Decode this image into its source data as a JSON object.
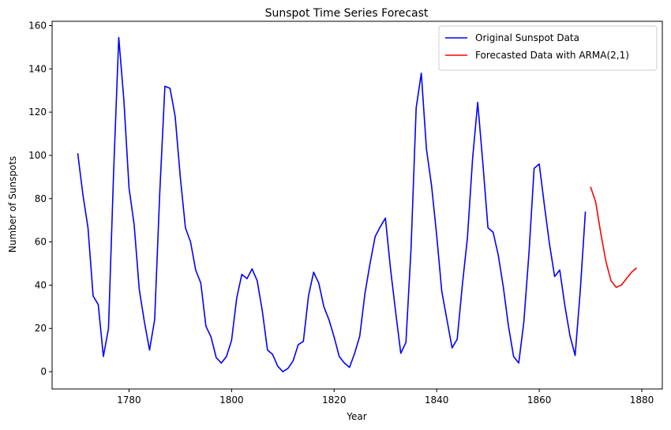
{
  "chart_data": {
    "type": "line",
    "title": "Sunspot Time Series Forecast",
    "xlabel": "Year",
    "ylabel": "Number of Sunspots",
    "xlim": [
      1765,
      1884
    ],
    "ylim": [
      -8,
      162
    ],
    "xticks": [
      1780,
      1800,
      1820,
      1840,
      1860,
      1880
    ],
    "yticks": [
      0,
      20,
      40,
      60,
      80,
      100,
      120,
      140,
      160
    ],
    "grid": false,
    "legend_position": "top-right",
    "series": [
      {
        "name": "Original Sunspot Data",
        "color": "#0000ff",
        "x": [
          1770,
          1771,
          1772,
          1773,
          1774,
          1775,
          1776,
          1777,
          1778,
          1779,
          1780,
          1781,
          1782,
          1783,
          1784,
          1785,
          1786,
          1787,
          1788,
          1789,
          1790,
          1791,
          1792,
          1793,
          1794,
          1795,
          1796,
          1797,
          1798,
          1799,
          1800,
          1801,
          1802,
          1803,
          1804,
          1805,
          1806,
          1807,
          1808,
          1809,
          1810,
          1811,
          1812,
          1813,
          1814,
          1815,
          1816,
          1817,
          1818,
          1819,
          1820,
          1821,
          1822,
          1823,
          1824,
          1825,
          1826,
          1827,
          1828,
          1829,
          1830,
          1831,
          1832,
          1833,
          1834,
          1835,
          1836,
          1837,
          1838,
          1839,
          1840,
          1841,
          1842,
          1843,
          1844,
          1845,
          1846,
          1847,
          1848,
          1849,
          1850,
          1851,
          1852,
          1853,
          1854,
          1855,
          1856,
          1857,
          1858,
          1859,
          1860,
          1861,
          1862,
          1863,
          1864,
          1865,
          1866,
          1867,
          1868,
          1869
        ],
        "values": [
          101,
          82,
          66.5,
          35,
          31,
          7,
          20,
          92.5,
          154.5,
          125.5,
          85,
          68,
          38,
          23,
          10,
          24,
          83,
          132,
          131,
          118,
          90,
          66.5,
          60,
          47,
          41,
          21,
          16,
          6.5,
          4,
          7,
          14.5,
          34,
          45,
          43,
          47.5,
          42,
          28,
          10,
          8,
          2.5,
          0,
          1.5,
          5,
          12.5,
          14,
          35,
          46,
          41,
          30,
          24,
          16,
          7,
          4,
          2,
          8.5,
          16.5,
          36,
          50,
          62.5,
          67,
          71,
          47.5,
          27.5,
          8.5,
          13.5,
          57,
          122,
          138,
          103,
          86,
          63,
          37,
          24,
          11,
          15,
          40,
          62,
          98.5,
          124.5,
          96.5,
          66.5,
          64.5,
          54,
          39,
          21,
          7,
          4,
          23,
          55,
          94,
          96,
          77,
          59,
          44,
          47,
          30.5,
          16.5,
          7.5,
          37.5,
          74
        ]
      },
      {
        "name": "Forecasted Data with ARMA(2,1)",
        "color": "#ff0000",
        "x": [
          1870,
          1871,
          1872,
          1873,
          1874,
          1875,
          1876,
          1877,
          1878,
          1879
        ],
        "values": [
          85.5,
          78.5,
          64,
          51,
          42,
          39,
          40,
          43,
          46,
          48
        ]
      }
    ]
  }
}
